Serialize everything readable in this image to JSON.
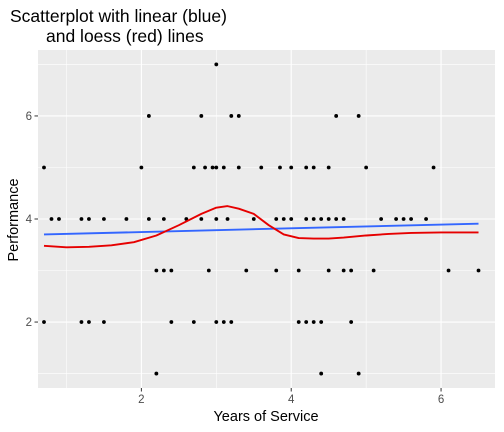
{
  "chart_data": {
    "type": "scatter",
    "title_lines": [
      "Scatterplot with linear (blue)",
      "and loess (red) lines"
    ],
    "xlabel": "Years of Service",
    "ylabel": "Performance",
    "xlim": [
      0.62,
      6.72
    ],
    "ylim": [
      0.72,
      7.28
    ],
    "xticks": [
      2,
      4,
      6
    ],
    "yticks": [
      2,
      4,
      6
    ],
    "grid": true,
    "panel_color": "#EBEBEB",
    "grid_color": "#FFFFFF",
    "point_color": "#000000",
    "points": [
      [
        0.7,
        2
      ],
      [
        0.7,
        5
      ],
      [
        0.8,
        4
      ],
      [
        0.9,
        4
      ],
      [
        1.2,
        2
      ],
      [
        1.2,
        4
      ],
      [
        1.3,
        2
      ],
      [
        1.3,
        4
      ],
      [
        1.5,
        2
      ],
      [
        1.5,
        4
      ],
      [
        1.8,
        4
      ],
      [
        2.0,
        5
      ],
      [
        2.1,
        4
      ],
      [
        2.1,
        6
      ],
      [
        2.2,
        1
      ],
      [
        2.2,
        3
      ],
      [
        2.3,
        3
      ],
      [
        2.3,
        4
      ],
      [
        2.4,
        2
      ],
      [
        2.4,
        3
      ],
      [
        2.6,
        4
      ],
      [
        2.7,
        2
      ],
      [
        2.7,
        5
      ],
      [
        2.8,
        4
      ],
      [
        2.8,
        6
      ],
      [
        2.85,
        5
      ],
      [
        2.9,
        3
      ],
      [
        2.95,
        5
      ],
      [
        3.0,
        2
      ],
      [
        3.0,
        4
      ],
      [
        3.0,
        5
      ],
      [
        3.0,
        7
      ],
      [
        3.1,
        2
      ],
      [
        3.1,
        5
      ],
      [
        3.15,
        4
      ],
      [
        3.2,
        2
      ],
      [
        3.2,
        6
      ],
      [
        3.3,
        5
      ],
      [
        3.3,
        6
      ],
      [
        3.4,
        3
      ],
      [
        3.5,
        4
      ],
      [
        3.6,
        5
      ],
      [
        3.8,
        3
      ],
      [
        3.8,
        4
      ],
      [
        3.85,
        5
      ],
      [
        3.9,
        4
      ],
      [
        4.0,
        4
      ],
      [
        4.0,
        5
      ],
      [
        4.1,
        2
      ],
      [
        4.1,
        3
      ],
      [
        4.2,
        2
      ],
      [
        4.2,
        4
      ],
      [
        4.2,
        5
      ],
      [
        4.3,
        2
      ],
      [
        4.3,
        4
      ],
      [
        4.3,
        5
      ],
      [
        4.4,
        1
      ],
      [
        4.4,
        2
      ],
      [
        4.4,
        4
      ],
      [
        4.5,
        3
      ],
      [
        4.5,
        4
      ],
      [
        4.5,
        5
      ],
      [
        4.6,
        4
      ],
      [
        4.6,
        6
      ],
      [
        4.7,
        3
      ],
      [
        4.7,
        4
      ],
      [
        4.8,
        2
      ],
      [
        4.8,
        3
      ],
      [
        4.9,
        1
      ],
      [
        4.9,
        6
      ],
      [
        5.0,
        5
      ],
      [
        5.1,
        3
      ],
      [
        5.2,
        4
      ],
      [
        5.4,
        4
      ],
      [
        5.5,
        4
      ],
      [
        5.6,
        4
      ],
      [
        5.8,
        4
      ],
      [
        5.9,
        5
      ],
      [
        6.1,
        3
      ],
      [
        6.5,
        3
      ]
    ],
    "series": [
      {
        "kind": "linear",
        "color": "#3366FF",
        "x": [
          0.7,
          6.5
        ],
        "y": [
          3.7,
          3.91
        ]
      },
      {
        "kind": "loess",
        "color": "#E60000",
        "x": [
          0.7,
          1.0,
          1.3,
          1.6,
          1.9,
          2.2,
          2.5,
          2.8,
          3.0,
          3.15,
          3.3,
          3.5,
          3.7,
          3.9,
          4.1,
          4.3,
          4.5,
          4.7,
          5.0,
          5.3,
          5.6,
          6.0,
          6.5
        ],
        "y": [
          3.48,
          3.45,
          3.46,
          3.49,
          3.55,
          3.68,
          3.88,
          4.1,
          4.22,
          4.25,
          4.2,
          4.1,
          3.88,
          3.7,
          3.63,
          3.62,
          3.62,
          3.64,
          3.68,
          3.71,
          3.73,
          3.74,
          3.74
        ]
      }
    ]
  }
}
